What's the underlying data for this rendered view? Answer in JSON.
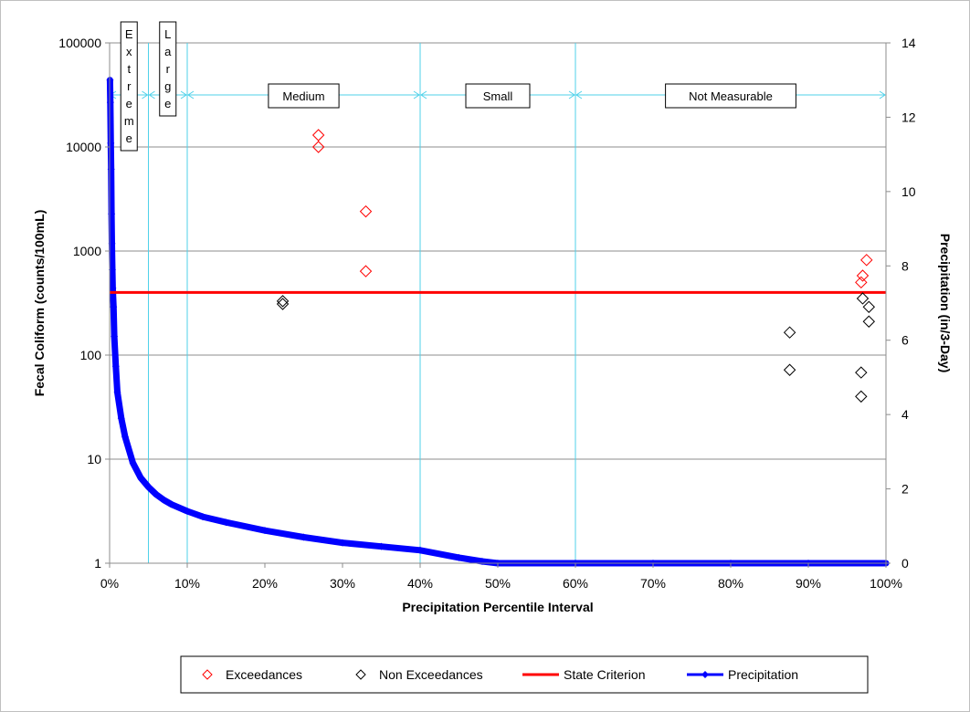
{
  "chart_data": {
    "type": "scatter",
    "title": "",
    "xlabel": "Precipitation Percentile Interval",
    "ylabel": "Fecal Coliform (counts/100mL)",
    "y2label": "Precipitation (in/3-Day)",
    "xlim": [
      0,
      100
    ],
    "ylim": [
      1,
      100000
    ],
    "yscale": "log",
    "y2lim": [
      0,
      14
    ],
    "grid": true,
    "legend_position": "bottom",
    "x_tick_labels": [
      "0%",
      "10%",
      "20%",
      "30%",
      "40%",
      "50%",
      "60%",
      "70%",
      "80%",
      "90%",
      "100%"
    ],
    "y_tick_labels": [
      "1",
      "10",
      "100",
      "1000",
      "10000",
      "100000"
    ],
    "y2_tick_labels": [
      "0",
      "2",
      "4",
      "6",
      "8",
      "10",
      "12",
      "14"
    ],
    "zones": [
      {
        "label": "Extreme",
        "x_start": 0,
        "x_end": 5
      },
      {
        "label": "Large",
        "x_start": 5,
        "x_end": 10
      },
      {
        "label": "Medium",
        "x_start": 10,
        "x_end": 40
      },
      {
        "label": "Small",
        "x_start": 40,
        "x_end": 60
      },
      {
        "label": "Not Measurable",
        "x_start": 60,
        "x_end": 100
      }
    ],
    "series": [
      {
        "name": "Exceedances",
        "color": "#ff0000",
        "marker": "diamond-open",
        "points": [
          [
            26.9,
            13000
          ],
          [
            26.9,
            10000
          ],
          [
            33.0,
            2400
          ],
          [
            33.0,
            640
          ],
          [
            97.5,
            820
          ],
          [
            97.0,
            580
          ],
          [
            96.8,
            500
          ]
        ]
      },
      {
        "name": "Non Exceedances",
        "color": "#000000",
        "marker": "diamond-open",
        "points": [
          [
            22.3,
            330
          ],
          [
            22.3,
            310
          ],
          [
            87.6,
            165
          ],
          [
            87.6,
            72
          ],
          [
            97.0,
            350
          ],
          [
            97.8,
            290
          ],
          [
            97.8,
            210
          ],
          [
            96.8,
            68
          ],
          [
            96.8,
            40
          ]
        ]
      },
      {
        "name": "State Criterion",
        "color": "#ff0000",
        "type": "line",
        "value": 400
      },
      {
        "name": "Precipitation",
        "color": "#0000ff",
        "type": "line",
        "axis": "secondary",
        "points": [
          [
            0.05,
            13.0
          ],
          [
            0.1,
            12.4
          ],
          [
            0.15,
            11.3
          ],
          [
            0.2,
            10.6
          ],
          [
            0.25,
            9.4
          ],
          [
            0.3,
            8.6
          ],
          [
            0.35,
            7.9
          ],
          [
            0.4,
            7.4
          ],
          [
            0.5,
            6.9
          ],
          [
            0.6,
            6.1
          ],
          [
            0.8,
            5.3
          ],
          [
            1.0,
            4.6
          ],
          [
            1.5,
            3.9
          ],
          [
            2,
            3.4
          ],
          [
            3,
            2.7
          ],
          [
            4,
            2.3
          ],
          [
            5,
            2.05
          ],
          [
            6,
            1.85
          ],
          [
            7,
            1.7
          ],
          [
            8,
            1.58
          ],
          [
            10,
            1.4
          ],
          [
            12,
            1.25
          ],
          [
            15,
            1.1
          ],
          [
            20,
            0.88
          ],
          [
            25,
            0.7
          ],
          [
            30,
            0.55
          ],
          [
            35,
            0.45
          ],
          [
            40,
            0.35
          ],
          [
            45,
            0.15
          ],
          [
            48,
            0.05
          ],
          [
            50,
            0.0
          ],
          [
            60,
            0.0
          ],
          [
            70,
            0.0
          ],
          [
            80,
            0.0
          ],
          [
            90,
            0.0
          ],
          [
            100,
            0.0
          ]
        ]
      }
    ]
  }
}
